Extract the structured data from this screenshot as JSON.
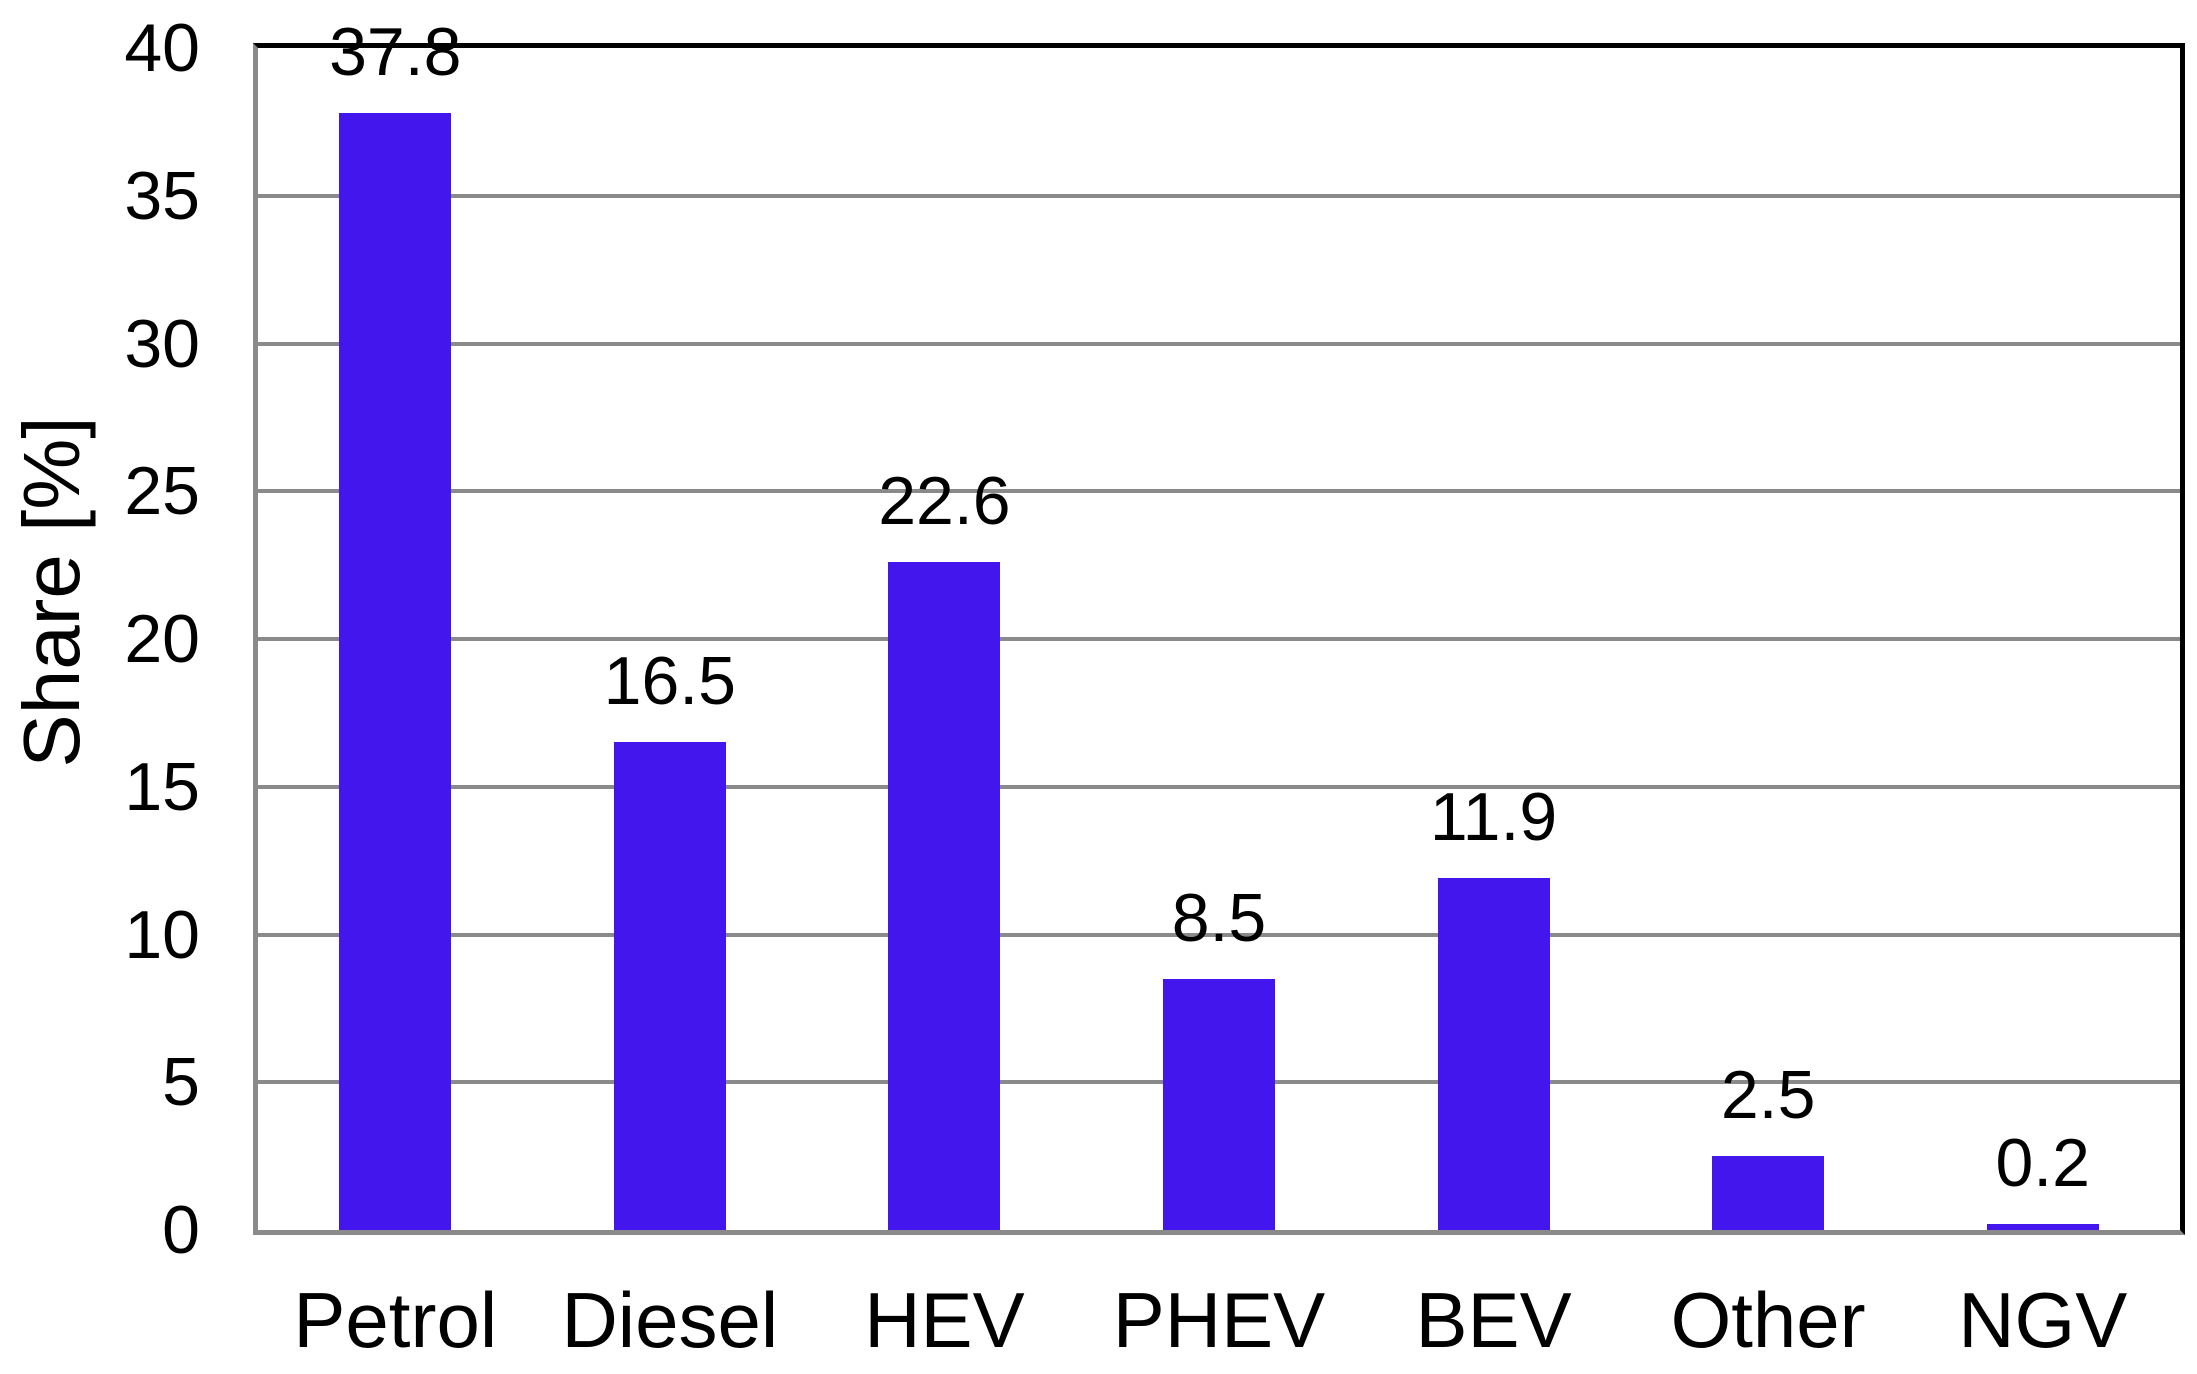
{
  "chart_data": {
    "type": "bar",
    "title": "",
    "xlabel": "",
    "ylabel": "Share [%]",
    "categories": [
      "Petrol",
      "Diesel",
      "HEV",
      "PHEV",
      "BEV",
      "Other",
      "NGV"
    ],
    "values": [
      37.8,
      16.5,
      22.6,
      8.5,
      11.9,
      2.5,
      0.2
    ],
    "value_labels": [
      "37.8",
      "16.5",
      "22.6",
      "8.5",
      "11.9",
      "2.5",
      "0.2"
    ],
    "ylim": [
      0,
      40
    ],
    "yticks": [
      0,
      5,
      10,
      15,
      20,
      25,
      30,
      35,
      40
    ],
    "ytick_labels": [
      "0",
      "5",
      "10",
      "15",
      "20",
      "25",
      "30",
      "35",
      "40"
    ],
    "grid": true,
    "legend": false,
    "colors": {
      "bar_fill": "#4316EE",
      "gridline": "#8a8a8a",
      "axis_gray": "#8a8a8a",
      "frame_black": "#000000",
      "text": "#000000",
      "background": "#ffffff"
    }
  }
}
